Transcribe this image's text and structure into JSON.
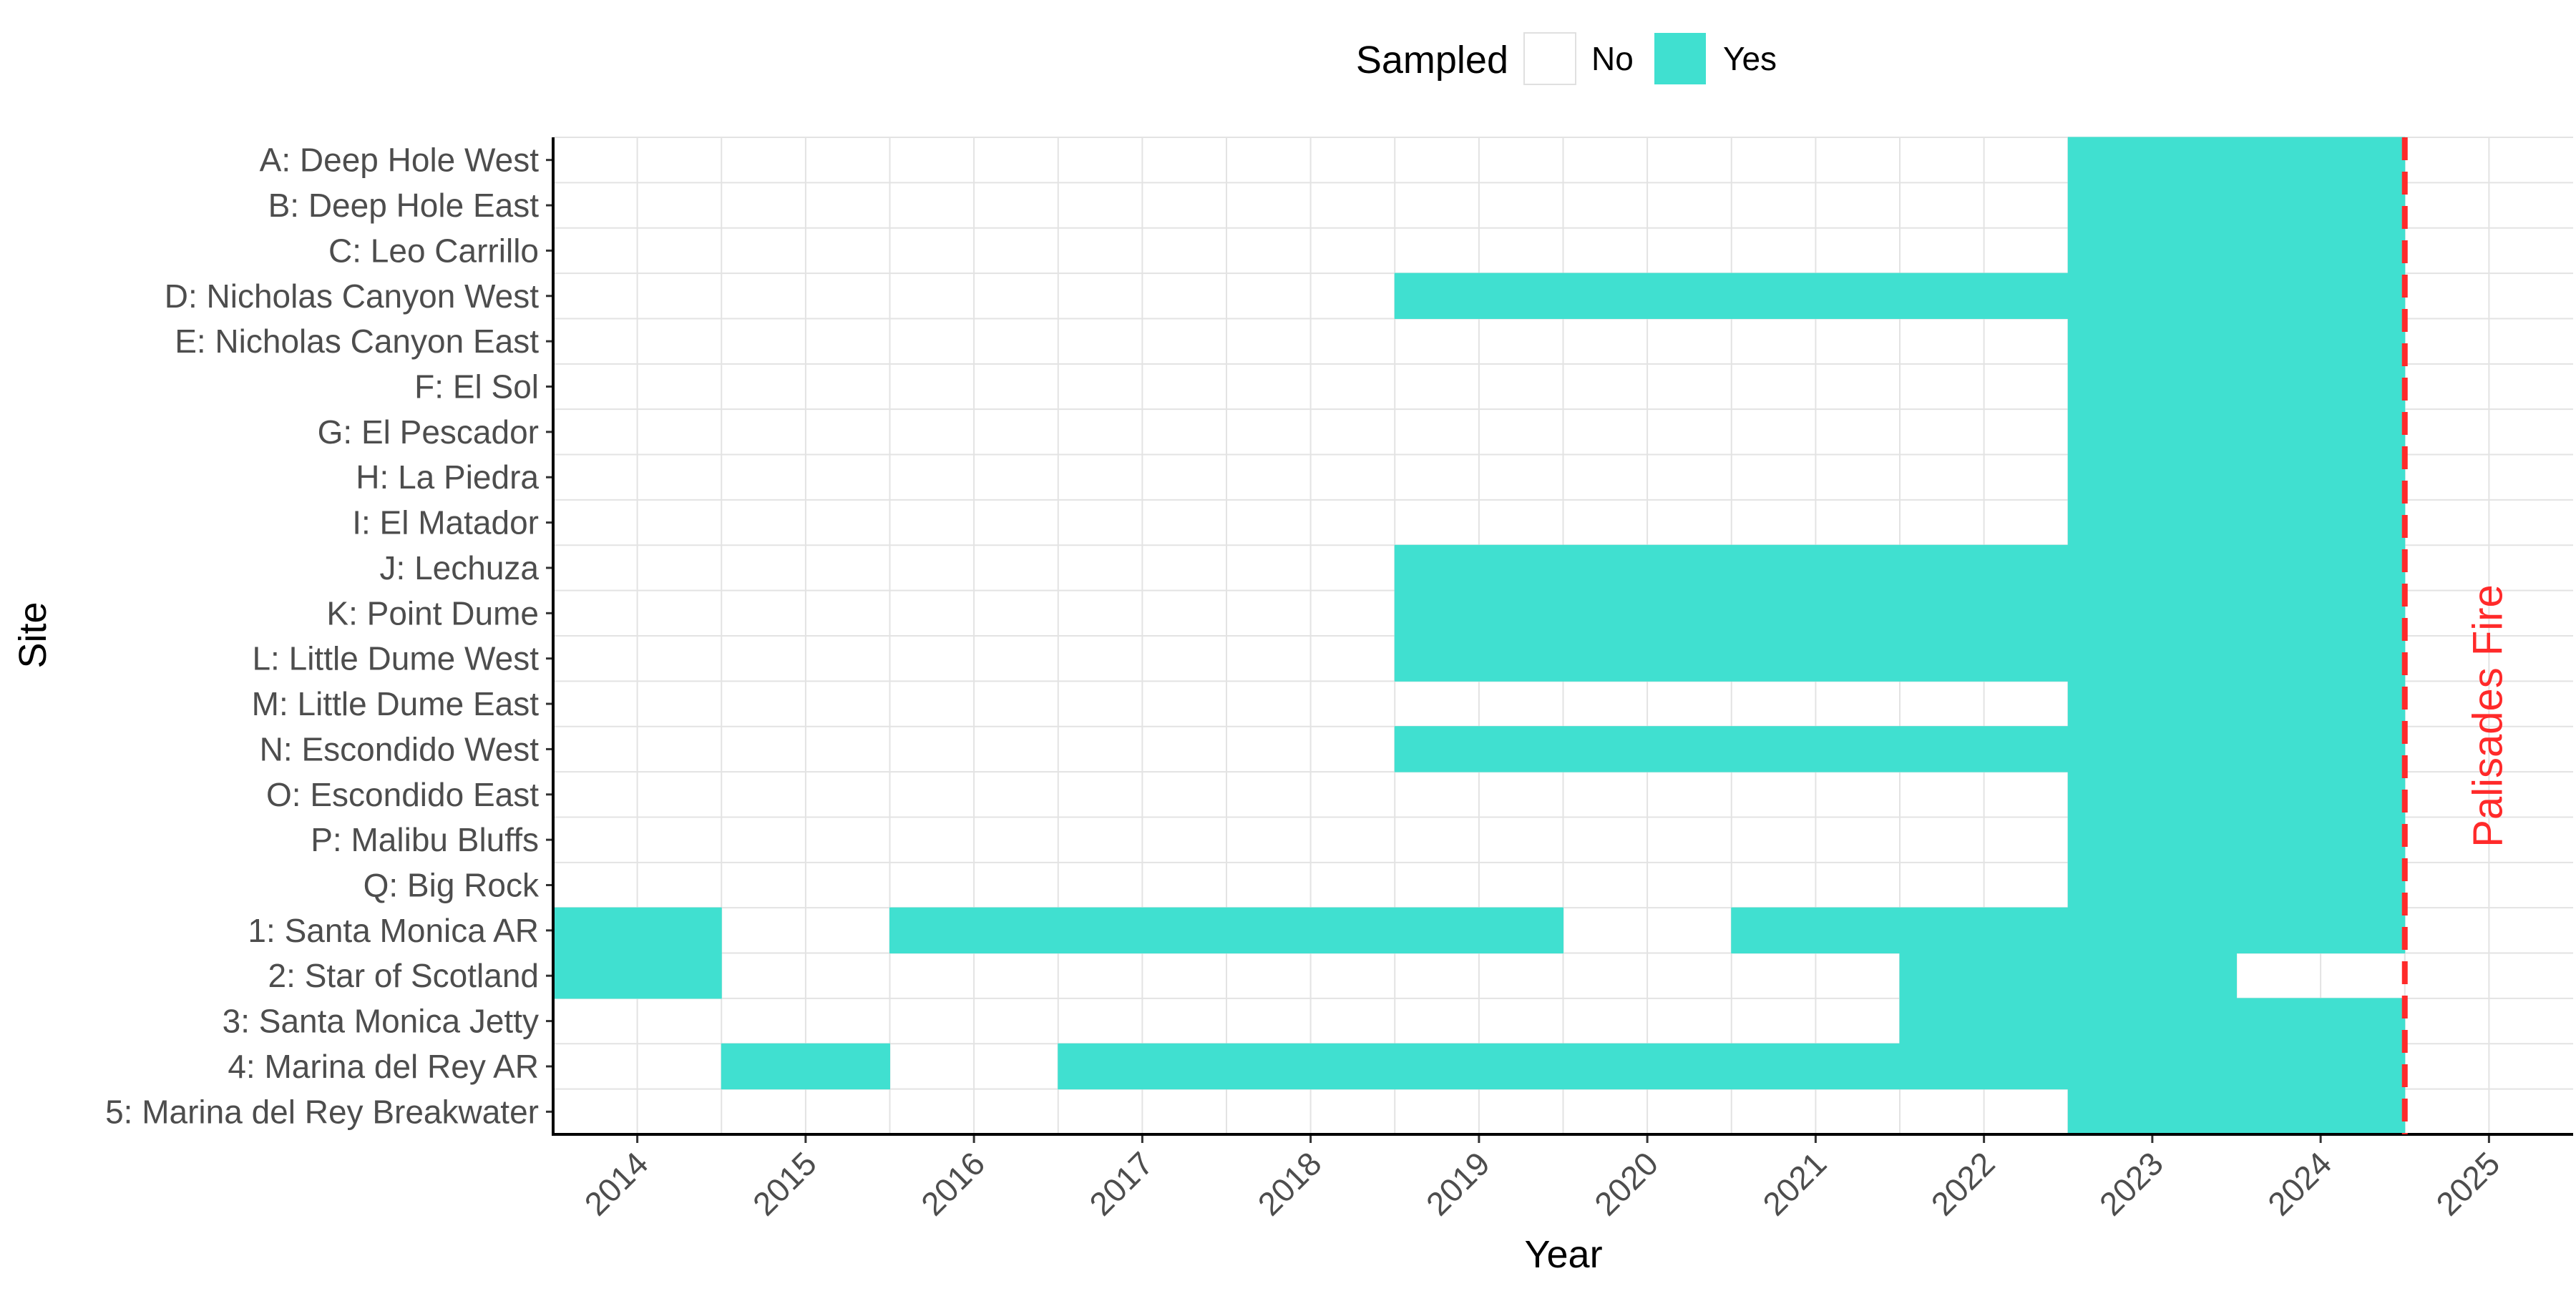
{
  "chart_data": {
    "type": "heatmap",
    "title": "",
    "xlabel": "Year",
    "ylabel": "Site",
    "x": [
      2014,
      2015,
      2016,
      2017,
      2018,
      2019,
      2020,
      2021,
      2022,
      2023,
      2024,
      2025
    ],
    "xlim": [
      2013.5,
      2025.5
    ],
    "grid": true,
    "legend": {
      "title": "Sampled",
      "position": "top",
      "entries": [
        {
          "label": "No",
          "color": "#ffffff"
        },
        {
          "label": "Yes",
          "color": "#40E0D0"
        }
      ]
    },
    "colors": {
      "yes": "#40E0D0",
      "no": "#ffffff",
      "grid": "#e3e3e3",
      "event": "#ff2a2a",
      "axis": "#000000"
    },
    "sites": [
      "A: Deep Hole West",
      "B: Deep Hole East",
      "C: Leo Carrillo",
      "D: Nicholas Canyon West",
      "E: Nicholas Canyon East",
      "F: El Sol",
      "G: El Pescador",
      "H: La Piedra",
      "I: El Matador",
      "J: Lechuza",
      "K: Point Dume",
      "L: Little Dume West",
      "M: Little Dume East",
      "N: Escondido West",
      "O: Escondido East",
      "P: Malibu Bluffs",
      "Q: Big Rock",
      "1: Santa Monica AR",
      "2: Star of Scotland",
      "3: Santa Monica Jetty",
      "4: Marina del Rey AR",
      "5: Marina del Rey Breakwater"
    ],
    "sampled_years": [
      [
        2023,
        2024
      ],
      [
        2023,
        2024
      ],
      [
        2023,
        2024
      ],
      [
        2019,
        2020,
        2021,
        2022,
        2023,
        2024
      ],
      [
        2023,
        2024
      ],
      [
        2023,
        2024
      ],
      [
        2023,
        2024
      ],
      [
        2023,
        2024
      ],
      [
        2023,
        2024
      ],
      [
        2019,
        2020,
        2021,
        2022,
        2023,
        2024
      ],
      [
        2019,
        2020,
        2021,
        2022,
        2023,
        2024
      ],
      [
        2019,
        2020,
        2021,
        2022,
        2023,
        2024
      ],
      [
        2023,
        2024
      ],
      [
        2019,
        2020,
        2021,
        2022,
        2023,
        2024
      ],
      [
        2023,
        2024
      ],
      [
        2023,
        2024
      ],
      [
        2023,
        2024
      ],
      [
        2014,
        2016,
        2017,
        2018,
        2019,
        2021,
        2022,
        2023,
        2024
      ],
      [
        2014,
        2022,
        2023
      ],
      [
        2022,
        2023,
        2024
      ],
      [
        2015,
        2017,
        2018,
        2019,
        2020,
        2021,
        2022,
        2023,
        2024
      ],
      [
        2023,
        2024
      ]
    ],
    "annotations": [
      {
        "label": "Palisades Fire",
        "x": 2024.5,
        "color": "#ff2a2a",
        "line_style": "dashed"
      }
    ]
  }
}
